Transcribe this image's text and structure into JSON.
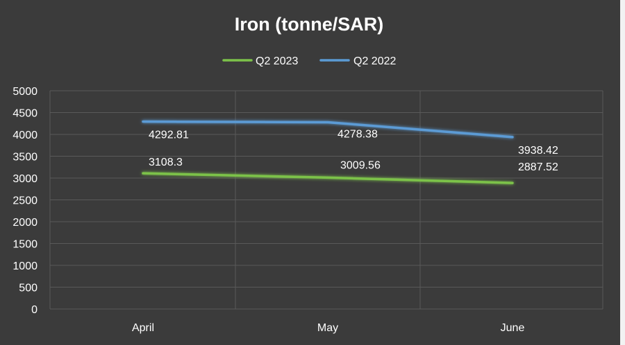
{
  "chart_data": {
    "type": "line",
    "title": "Iron (tonne/SAR)",
    "categories": [
      "April",
      "May",
      "June"
    ],
    "series": [
      {
        "name": "Q2 2023",
        "values": [
          3108.3,
          3009.56,
          2887.52
        ],
        "color": "#7cc24a"
      },
      {
        "name": "Q2 2022",
        "values": [
          4292.81,
          4278.38,
          3938.42
        ],
        "color": "#5b9bd5"
      }
    ],
    "data_labels": {
      "Q2 2023": [
        "3108.3",
        "3009.56",
        "2887.52"
      ],
      "Q2 2022": [
        "4292.81",
        "4278.38",
        "3938.42"
      ]
    },
    "ylim": [
      0,
      5000
    ],
    "yticks": [
      0,
      500,
      1000,
      1500,
      2000,
      2500,
      3000,
      3500,
      4000,
      4500,
      5000
    ],
    "grid": true,
    "legend_position": "top-center"
  }
}
